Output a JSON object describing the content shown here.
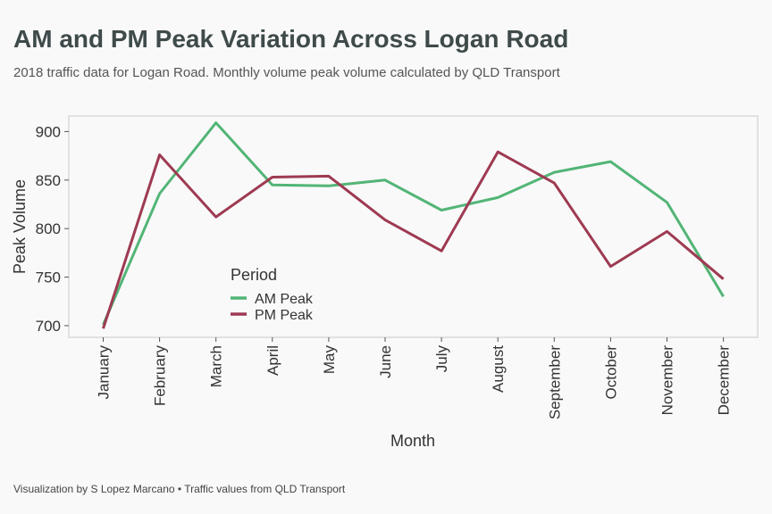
{
  "header": {
    "title": "AM and PM Peak Variation Across Logan Road",
    "subtitle": "2018 traffic data for Logan Road. Monthly volume peak volume calculated by QLD Transport"
  },
  "footer": {
    "caption": "Visualization by S Lopez Marcano • Traffic values from QLD Transport"
  },
  "colors": {
    "am": "#52b576",
    "pm": "#9e3a52",
    "panel_border": "#d9d9d9",
    "panel_bg": "#f9f9f9"
  },
  "chart_data": {
    "type": "line",
    "xlabel": "Month",
    "ylabel": "Peak Volume",
    "ylim": [
      688,
      916
    ],
    "yticks": [
      700,
      750,
      800,
      850,
      900
    ],
    "categories": [
      "January",
      "February",
      "March",
      "April",
      "May",
      "June",
      "July",
      "August",
      "September",
      "October",
      "November",
      "December"
    ],
    "grid": false,
    "legend": {
      "title": "Period",
      "placement": "inside-left-bottom"
    },
    "series": [
      {
        "name": "AM Peak",
        "color": "#52b576",
        "values": [
          701,
          836,
          909,
          845,
          844,
          850,
          819,
          832,
          858,
          869,
          827,
          730
        ]
      },
      {
        "name": "PM Peak",
        "color": "#9e3a52",
        "values": [
          697,
          876,
          812,
          853,
          854,
          809,
          777,
          879,
          847,
          761,
          797,
          748
        ]
      }
    ]
  }
}
